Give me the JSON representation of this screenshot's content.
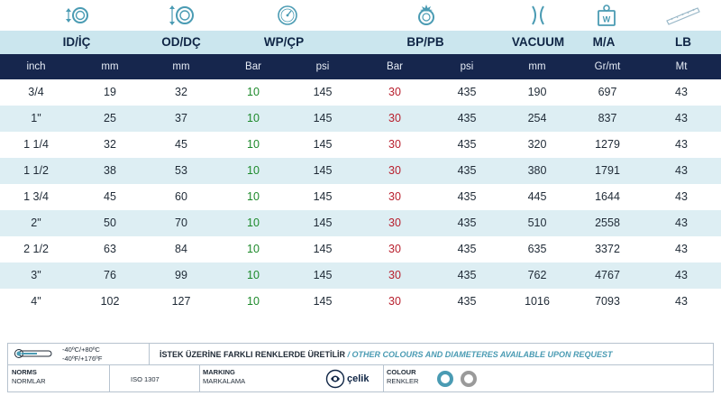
{
  "icons": [
    {
      "name": "id-diameter-icon",
      "color": "#4a9bb3"
    },
    {
      "name": "od-diameter-icon",
      "color": "#4a9bb3"
    },
    {
      "name": "pressure-gauge-icon",
      "color": "#4a9bb3"
    },
    {
      "name": "burst-pressure-icon",
      "color": "#4a9bb3"
    },
    {
      "name": "vacuum-icon",
      "color": "#4a9bb3"
    },
    {
      "name": "weight-icon",
      "color": "#4a9bb3"
    },
    {
      "name": "length-icon",
      "color": "#4a9bb3"
    }
  ],
  "group_headers": {
    "id": "ID/İÇ",
    "od": "OD/DÇ",
    "wp": "WP/ÇP",
    "bp": "BP/PB",
    "vacuum": "VACUUM",
    "weight": "M/A",
    "length": "LB"
  },
  "units": {
    "inch": "inch",
    "mm1": "mm",
    "mm2": "mm",
    "wp_bar": "Bar",
    "wp_psi": "psi",
    "bp_bar": "Bar",
    "bp_psi": "psi",
    "vac_mm": "mm",
    "weight": "Gr/mt",
    "length": "Mt"
  },
  "rows": [
    [
      "3/4",
      "19",
      "32",
      "10",
      "145",
      "30",
      "435",
      "190",
      "697",
      "43"
    ],
    [
      "1\"",
      "25",
      "37",
      "10",
      "145",
      "30",
      "435",
      "254",
      "837",
      "43"
    ],
    [
      "1 1/4",
      "32",
      "45",
      "10",
      "145",
      "30",
      "435",
      "320",
      "1279",
      "43"
    ],
    [
      "1 1/2",
      "38",
      "53",
      "10",
      "145",
      "30",
      "435",
      "380",
      "1791",
      "43"
    ],
    [
      "1 3/4",
      "45",
      "60",
      "10",
      "145",
      "30",
      "435",
      "445",
      "1644",
      "43"
    ],
    [
      "2\"",
      "50",
      "70",
      "10",
      "145",
      "30",
      "435",
      "510",
      "2558",
      "43"
    ],
    [
      "2 1/2",
      "63",
      "84",
      "10",
      "145",
      "30",
      "435",
      "635",
      "3372",
      "43"
    ],
    [
      "3\"",
      "76",
      "99",
      "10",
      "145",
      "30",
      "435",
      "762",
      "4767",
      "43"
    ],
    [
      "4\"",
      "102",
      "127",
      "10",
      "145",
      "30",
      "435",
      "1016",
      "7093",
      "43"
    ]
  ],
  "colors": {
    "header_light": "#cbe6ee",
    "header_dark": "#16264d",
    "wp_value": "#1e8a2c",
    "bp_value": "#b8202e",
    "accent": "#4a9bb3"
  },
  "footer": {
    "temp_c": "-40ºC/+80ºC",
    "temp_f": "-40ºF/+176ºF",
    "notice_tr": "İSTEK ÜZERİNE FARKLI RENKLERDE ÜRETİLİR",
    "notice_sep": " / ",
    "notice_en": "OTHER COLOURS AND DIAMETERES AVAILABLE UPON REQUEST",
    "norms_label": "NORMS",
    "norms_label_tr": "NORMLAR",
    "norms_value": "ISO 1307",
    "marking_label": "MARKING",
    "marking_label_tr": "MARKALAMA",
    "brand": "çelik",
    "colour_label": "COLOUR",
    "colour_label_tr": "RENKLER",
    "colour_swatches": [
      "#4a9bb3",
      "#9a9a9a"
    ]
  }
}
